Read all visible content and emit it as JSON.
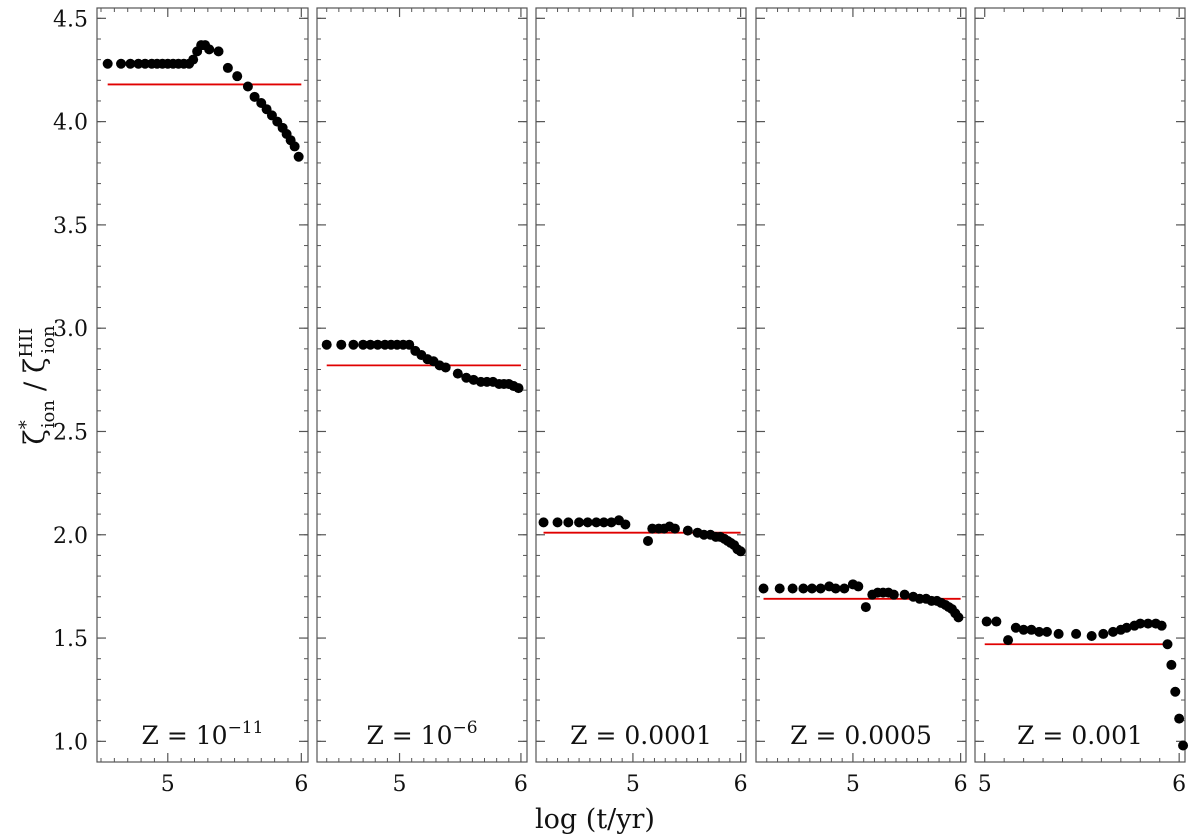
{
  "chart_data": {
    "type": "scatter",
    "ylabel": "ζ*ion / ζHIIion",
    "xlabel": "log (t/yr)",
    "ylim": [
      0.9,
      4.55
    ],
    "yticks": [
      1.0,
      1.5,
      2.0,
      2.5,
      3.0,
      3.5,
      4.0,
      4.5
    ],
    "ytick_labels": [
      "1.0",
      "1.5",
      "2.0",
      "2.5",
      "3.0",
      "3.5",
      "4.0",
      "4.5"
    ],
    "marker_color": "#000000",
    "line_color": "#e00000",
    "panels": [
      {
        "label_main": "Z = 10",
        "label_sup": "−11",
        "xlim": [
          4.47,
          6.05
        ],
        "xticks": [
          5,
          6
        ],
        "xtick_labels": [
          "5",
          "6"
        ],
        "hline": 4.18,
        "hline_x": [
          4.55,
          6.0
        ],
        "points": [
          [
            4.55,
            4.28
          ],
          [
            4.65,
            4.28
          ],
          [
            4.72,
            4.28
          ],
          [
            4.78,
            4.28
          ],
          [
            4.83,
            4.28
          ],
          [
            4.88,
            4.28
          ],
          [
            4.92,
            4.28
          ],
          [
            4.96,
            4.28
          ],
          [
            5.0,
            4.28
          ],
          [
            5.04,
            4.28
          ],
          [
            5.08,
            4.28
          ],
          [
            5.12,
            4.28
          ],
          [
            5.16,
            4.28
          ],
          [
            5.19,
            4.3
          ],
          [
            5.22,
            4.34
          ],
          [
            5.25,
            4.37
          ],
          [
            5.28,
            4.37
          ],
          [
            5.31,
            4.35
          ],
          [
            5.38,
            4.34
          ],
          [
            5.45,
            4.26
          ],
          [
            5.52,
            4.22
          ],
          [
            5.6,
            4.17
          ],
          [
            5.65,
            4.12
          ],
          [
            5.7,
            4.09
          ],
          [
            5.74,
            4.06
          ],
          [
            5.78,
            4.03
          ],
          [
            5.82,
            4.0
          ],
          [
            5.86,
            3.97
          ],
          [
            5.89,
            3.94
          ],
          [
            5.92,
            3.91
          ],
          [
            5.95,
            3.88
          ],
          [
            5.98,
            3.83
          ]
        ]
      },
      {
        "label_main": "Z = 10",
        "label_sup": "−6",
        "xlim": [
          4.32,
          6.05
        ],
        "xticks": [
          5,
          6
        ],
        "xtick_labels": [
          "5",
          "6"
        ],
        "hline": 2.82,
        "hline_x": [
          4.4,
          6.0
        ],
        "points": [
          [
            4.4,
            2.92
          ],
          [
            4.52,
            2.92
          ],
          [
            4.62,
            2.92
          ],
          [
            4.7,
            2.92
          ],
          [
            4.76,
            2.92
          ],
          [
            4.82,
            2.92
          ],
          [
            4.88,
            2.92
          ],
          [
            4.93,
            2.92
          ],
          [
            4.98,
            2.92
          ],
          [
            5.03,
            2.92
          ],
          [
            5.08,
            2.92
          ],
          [
            5.13,
            2.89
          ],
          [
            5.18,
            2.87
          ],
          [
            5.23,
            2.85
          ],
          [
            5.28,
            2.84
          ],
          [
            5.33,
            2.82
          ],
          [
            5.38,
            2.81
          ],
          [
            5.48,
            2.78
          ],
          [
            5.55,
            2.76
          ],
          [
            5.61,
            2.75
          ],
          [
            5.67,
            2.74
          ],
          [
            5.72,
            2.74
          ],
          [
            5.77,
            2.74
          ],
          [
            5.82,
            2.73
          ],
          [
            5.86,
            2.73
          ],
          [
            5.9,
            2.73
          ],
          [
            5.94,
            2.72
          ],
          [
            5.98,
            2.71
          ]
        ]
      },
      {
        "label_main": "Z = 0.0001",
        "label_sup": "",
        "xlim": [
          4.1,
          6.05
        ],
        "xticks": [
          5,
          6
        ],
        "xtick_labels": [
          "5",
          "6"
        ],
        "hline": 2.01,
        "hline_x": [
          4.17,
          6.0
        ],
        "points": [
          [
            4.17,
            2.06
          ],
          [
            4.3,
            2.06
          ],
          [
            4.4,
            2.06
          ],
          [
            4.5,
            2.06
          ],
          [
            4.58,
            2.06
          ],
          [
            4.66,
            2.06
          ],
          [
            4.73,
            2.06
          ],
          [
            4.8,
            2.06
          ],
          [
            4.87,
            2.07
          ],
          [
            4.93,
            2.05
          ],
          [
            5.14,
            1.97
          ],
          [
            5.18,
            2.03
          ],
          [
            5.24,
            2.03
          ],
          [
            5.29,
            2.03
          ],
          [
            5.34,
            2.04
          ],
          [
            5.39,
            2.03
          ],
          [
            5.51,
            2.02
          ],
          [
            5.6,
            2.01
          ],
          [
            5.66,
            2.0
          ],
          [
            5.72,
            2.0
          ],
          [
            5.77,
            1.99
          ],
          [
            5.81,
            1.99
          ],
          [
            5.85,
            1.98
          ],
          [
            5.88,
            1.97
          ],
          [
            5.91,
            1.96
          ],
          [
            5.94,
            1.95
          ],
          [
            5.97,
            1.93
          ],
          [
            6.0,
            1.92
          ]
        ]
      },
      {
        "label_main": "Z = 0.0005",
        "label_sup": "",
        "xlim": [
          4.1,
          6.05
        ],
        "xticks": [
          5,
          6
        ],
        "xtick_labels": [
          "5",
          "6"
        ],
        "hline": 1.69,
        "hline_x": [
          4.17,
          6.0
        ],
        "points": [
          [
            4.17,
            1.74
          ],
          [
            4.32,
            1.74
          ],
          [
            4.44,
            1.74
          ],
          [
            4.54,
            1.74
          ],
          [
            4.62,
            1.74
          ],
          [
            4.7,
            1.74
          ],
          [
            4.78,
            1.75
          ],
          [
            4.84,
            1.74
          ],
          [
            4.92,
            1.74
          ],
          [
            5.0,
            1.76
          ],
          [
            5.05,
            1.75
          ],
          [
            5.12,
            1.65
          ],
          [
            5.18,
            1.71
          ],
          [
            5.23,
            1.72
          ],
          [
            5.28,
            1.72
          ],
          [
            5.33,
            1.72
          ],
          [
            5.38,
            1.71
          ],
          [
            5.48,
            1.71
          ],
          [
            5.56,
            1.7
          ],
          [
            5.62,
            1.69
          ],
          [
            5.68,
            1.69
          ],
          [
            5.73,
            1.68
          ],
          [
            5.78,
            1.68
          ],
          [
            5.82,
            1.67
          ],
          [
            5.86,
            1.66
          ],
          [
            5.89,
            1.65
          ],
          [
            5.92,
            1.64
          ],
          [
            5.95,
            1.62
          ],
          [
            5.98,
            1.6
          ]
        ]
      },
      {
        "label_main": "Z = 0.001",
        "label_sup": "",
        "xlim": [
          4.95,
          6.03
        ],
        "xticks": [
          5,
          6
        ],
        "xtick_labels": [
          "5",
          "6"
        ],
        "hline": 1.47,
        "hline_x": [
          5.0,
          5.96
        ],
        "points": [
          [
            5.01,
            1.58
          ],
          [
            5.06,
            1.58
          ],
          [
            5.12,
            1.49
          ],
          [
            5.16,
            1.55
          ],
          [
            5.2,
            1.54
          ],
          [
            5.24,
            1.54
          ],
          [
            5.28,
            1.53
          ],
          [
            5.32,
            1.53
          ],
          [
            5.38,
            1.52
          ],
          [
            5.47,
            1.52
          ],
          [
            5.55,
            1.51
          ],
          [
            5.61,
            1.52
          ],
          [
            5.66,
            1.53
          ],
          [
            5.7,
            1.54
          ],
          [
            5.73,
            1.55
          ],
          [
            5.77,
            1.56
          ],
          [
            5.8,
            1.57
          ],
          [
            5.84,
            1.57
          ],
          [
            5.88,
            1.57
          ],
          [
            5.91,
            1.56
          ],
          [
            5.94,
            1.47
          ],
          [
            5.96,
            1.37
          ],
          [
            5.98,
            1.24
          ],
          [
            6.0,
            1.11
          ],
          [
            6.02,
            0.98
          ]
        ]
      }
    ]
  }
}
